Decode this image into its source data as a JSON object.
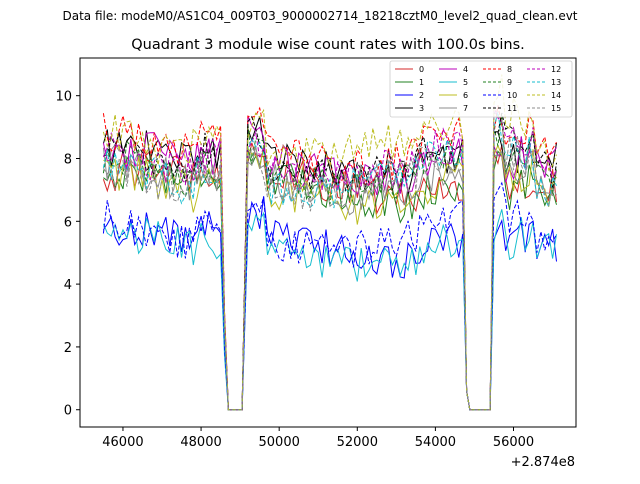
{
  "chart_data": {
    "type": "line",
    "suptitle": "Data file: modeM0/AS1C04_009T03_9000002714_18218cztM0_level2_quad_clean.evt",
    "title": "Quadrant 3 module wise count rates with 100.0s bins.",
    "xlabel": "",
    "ylabel": "",
    "x_offset_label": "+2.874e8",
    "xlim": [
      44900,
      57600
    ],
    "ylim": [
      -0.55,
      11.2
    ],
    "xticks": [
      46000,
      48000,
      50000,
      52000,
      54000,
      56000
    ],
    "xtick_labels": [
      "46000",
      "48000",
      "50000",
      "52000",
      "54000",
      "56000"
    ],
    "yticks": [
      0,
      2,
      4,
      6,
      8,
      10
    ],
    "ytick_labels": [
      "0",
      "2",
      "4",
      "6",
      "8",
      "10"
    ],
    "legend_position": "top-right",
    "segments": [
      {
        "x0": 45500,
        "x1": 48500
      },
      {
        "x0": 49200,
        "x1": 54700
      },
      {
        "x0": 55500,
        "x1": 57100
      }
    ],
    "zero_interval": [
      48600,
      54800,
      55400
    ],
    "series": [
      {
        "name": "0",
        "color": "#d62728",
        "dash": "solid",
        "level": 7.3
      },
      {
        "name": "1",
        "color": "#208020",
        "dash": "solid",
        "level": 7.2
      },
      {
        "name": "2",
        "color": "#0000ff",
        "dash": "solid",
        "level": 5.4
      },
      {
        "name": "3",
        "color": "#000000",
        "dash": "solid",
        "level": 8.0
      },
      {
        "name": "4",
        "color": "#bb00bb",
        "dash": "solid",
        "level": 7.9
      },
      {
        "name": "5",
        "color": "#17becf",
        "dash": "solid",
        "level": 5.2
      },
      {
        "name": "6",
        "color": "#bcbd22",
        "dash": "solid",
        "level": 7.1
      },
      {
        "name": "7",
        "color": "#8c8c8c",
        "dash": "solid",
        "level": 7.4
      },
      {
        "name": "8",
        "color": "#ff0000",
        "dash": "dashed",
        "level": 8.4
      },
      {
        "name": "9",
        "color": "#208020",
        "dash": "dashed",
        "level": 7.7
      },
      {
        "name": "10",
        "color": "#0000ff",
        "dash": "dashed",
        "level": 5.7
      },
      {
        "name": "11",
        "color": "#000000",
        "dash": "dashed",
        "level": 8.1
      },
      {
        "name": "12",
        "color": "#bb00bb",
        "dash": "dashed",
        "level": 8.0
      },
      {
        "name": "13",
        "color": "#17becf",
        "dash": "dashed",
        "level": 7.6
      },
      {
        "name": "14",
        "color": "#bcbd22",
        "dash": "dashed",
        "level": 8.7
      },
      {
        "name": "15",
        "color": "#8c8c8c",
        "dash": "dashed",
        "level": 7.5
      }
    ]
  }
}
